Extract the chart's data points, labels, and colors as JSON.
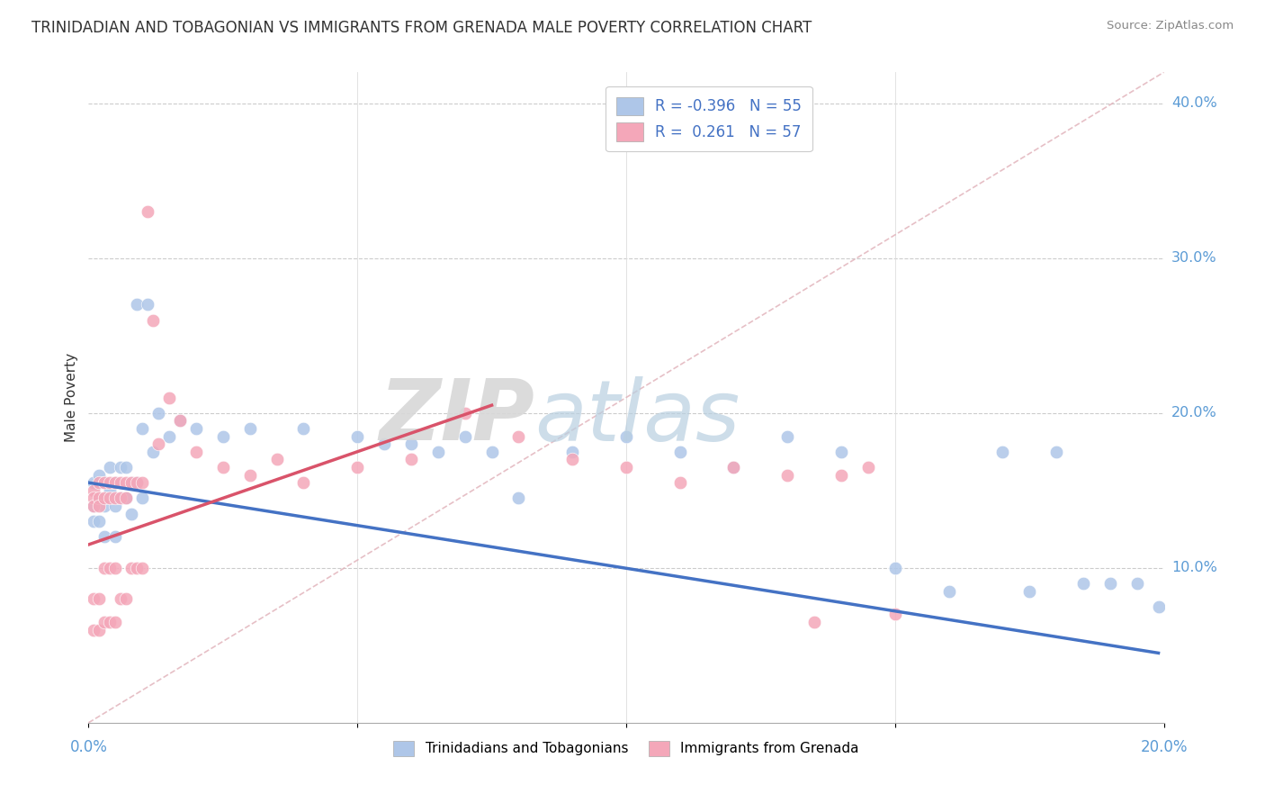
{
  "title": "TRINIDADIAN AND TOBAGONIAN VS IMMIGRANTS FROM GRENADA MALE POVERTY CORRELATION CHART",
  "source": "Source: ZipAtlas.com",
  "ylabel": "Male Poverty",
  "legend_blue_label": "R = -0.396   N = 55",
  "legend_pink_label": "R =  0.261   N = 57",
  "blue_color": "#aec6e8",
  "pink_color": "#f4a7b9",
  "blue_line_color": "#4472c4",
  "pink_line_color": "#d9536a",
  "diag_line_color": "#e0b0b8",
  "xlim": [
    0.0,
    0.2
  ],
  "ylim": [
    0.0,
    0.42
  ],
  "ytick_vals": [
    0.1,
    0.2,
    0.3,
    0.4
  ],
  "ytick_labels": [
    "10.0%",
    "20.0%",
    "30.0%",
    "40.0%"
  ],
  "figsize": [
    14.06,
    8.92
  ],
  "dpi": 100,
  "blue_x": [
    0.001,
    0.001,
    0.001,
    0.002,
    0.002,
    0.002,
    0.003,
    0.003,
    0.003,
    0.004,
    0.004,
    0.005,
    0.005,
    0.005,
    0.006,
    0.006,
    0.007,
    0.007,
    0.008,
    0.008,
    0.009,
    0.009,
    0.01,
    0.01,
    0.011,
    0.012,
    0.013,
    0.015,
    0.017,
    0.02,
    0.025,
    0.03,
    0.04,
    0.05,
    0.055,
    0.06,
    0.065,
    0.07,
    0.075,
    0.08,
    0.09,
    0.1,
    0.11,
    0.12,
    0.13,
    0.14,
    0.15,
    0.16,
    0.17,
    0.175,
    0.18,
    0.185,
    0.19,
    0.195,
    0.199
  ],
  "blue_y": [
    0.155,
    0.14,
    0.13,
    0.16,
    0.145,
    0.13,
    0.155,
    0.14,
    0.12,
    0.165,
    0.15,
    0.155,
    0.14,
    0.12,
    0.165,
    0.145,
    0.165,
    0.145,
    0.155,
    0.135,
    0.27,
    0.155,
    0.19,
    0.145,
    0.27,
    0.175,
    0.2,
    0.185,
    0.195,
    0.19,
    0.185,
    0.19,
    0.19,
    0.185,
    0.18,
    0.18,
    0.175,
    0.185,
    0.175,
    0.145,
    0.175,
    0.185,
    0.175,
    0.165,
    0.185,
    0.175,
    0.1,
    0.085,
    0.175,
    0.085,
    0.175,
    0.09,
    0.09,
    0.09,
    0.075
  ],
  "pink_x": [
    0.001,
    0.001,
    0.001,
    0.001,
    0.001,
    0.002,
    0.002,
    0.002,
    0.002,
    0.002,
    0.003,
    0.003,
    0.003,
    0.003,
    0.004,
    0.004,
    0.004,
    0.004,
    0.005,
    0.005,
    0.005,
    0.005,
    0.006,
    0.006,
    0.006,
    0.007,
    0.007,
    0.007,
    0.008,
    0.008,
    0.009,
    0.009,
    0.01,
    0.01,
    0.011,
    0.012,
    0.013,
    0.015,
    0.017,
    0.02,
    0.025,
    0.03,
    0.035,
    0.04,
    0.05,
    0.06,
    0.07,
    0.08,
    0.09,
    0.1,
    0.11,
    0.12,
    0.13,
    0.135,
    0.14,
    0.145,
    0.15
  ],
  "pink_y": [
    0.15,
    0.145,
    0.14,
    0.08,
    0.06,
    0.155,
    0.145,
    0.14,
    0.08,
    0.06,
    0.155,
    0.145,
    0.1,
    0.065,
    0.155,
    0.145,
    0.1,
    0.065,
    0.155,
    0.145,
    0.1,
    0.065,
    0.155,
    0.145,
    0.08,
    0.155,
    0.145,
    0.08,
    0.155,
    0.1,
    0.155,
    0.1,
    0.155,
    0.1,
    0.33,
    0.26,
    0.18,
    0.21,
    0.195,
    0.175,
    0.165,
    0.16,
    0.17,
    0.155,
    0.165,
    0.17,
    0.2,
    0.185,
    0.17,
    0.165,
    0.155,
    0.165,
    0.16,
    0.065,
    0.16,
    0.165,
    0.07
  ],
  "blue_trend_x0": 0.0,
  "blue_trend_x1": 0.199,
  "blue_trend_y0": 0.155,
  "blue_trend_y1": 0.045,
  "pink_trend_x0": 0.0,
  "pink_trend_x1": 0.075,
  "pink_trend_y0": 0.115,
  "pink_trend_y1": 0.205
}
